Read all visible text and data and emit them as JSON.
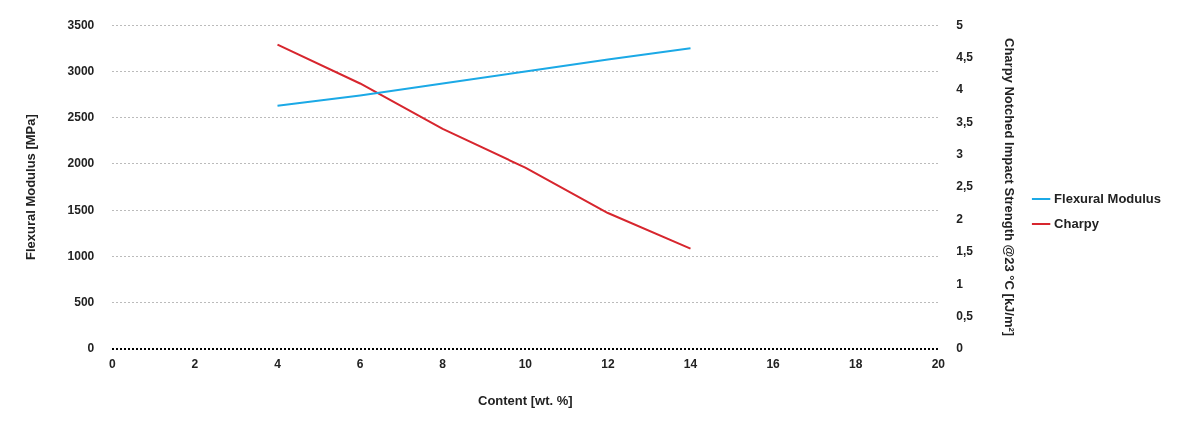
{
  "chart_data": {
    "type": "line",
    "xlabel": "Content [wt. %]",
    "ylabel": "Flexural Modulus [MPa]",
    "y2label": "Charpy Notched Impact Strength @23 °C [kJ/m²]",
    "xlim": [
      0,
      20
    ],
    "xticks": [
      0,
      2,
      4,
      6,
      8,
      10,
      12,
      14,
      16,
      18,
      20
    ],
    "ylim": [
      0,
      3500
    ],
    "yticks": [
      0,
      500,
      1000,
      1500,
      2000,
      2500,
      3000,
      3500
    ],
    "y2lim": [
      0,
      5
    ],
    "y2ticks": [
      0,
      {
        "value": 0.5,
        "label": "0,5"
      },
      1,
      {
        "value": 1.5,
        "label": "1,5"
      },
      2,
      {
        "value": 2.5,
        "label": "2,5"
      },
      3,
      {
        "value": 3.5,
        "label": "3,5"
      },
      4,
      {
        "value": 4.5,
        "label": "4,5"
      },
      5
    ],
    "grid": "y",
    "legend": "right",
    "marker": "none",
    "series": [
      {
        "name": "Flexural Modulus",
        "color": "#1ba9e6",
        "x": [
          4,
          6,
          8,
          10,
          12,
          14
        ],
        "values": [
          2630,
          2740,
          2870,
          3000,
          3130,
          3250
        ]
      },
      {
        "name": "Charpy",
        "color": "#d7262e",
        "axis": "y2",
        "x": [
          4,
          6,
          8,
          10,
          12,
          14
        ],
        "values": [
          4.7,
          4.1,
          3.4,
          2.8,
          2.1,
          1.55
        ]
      }
    ]
  }
}
